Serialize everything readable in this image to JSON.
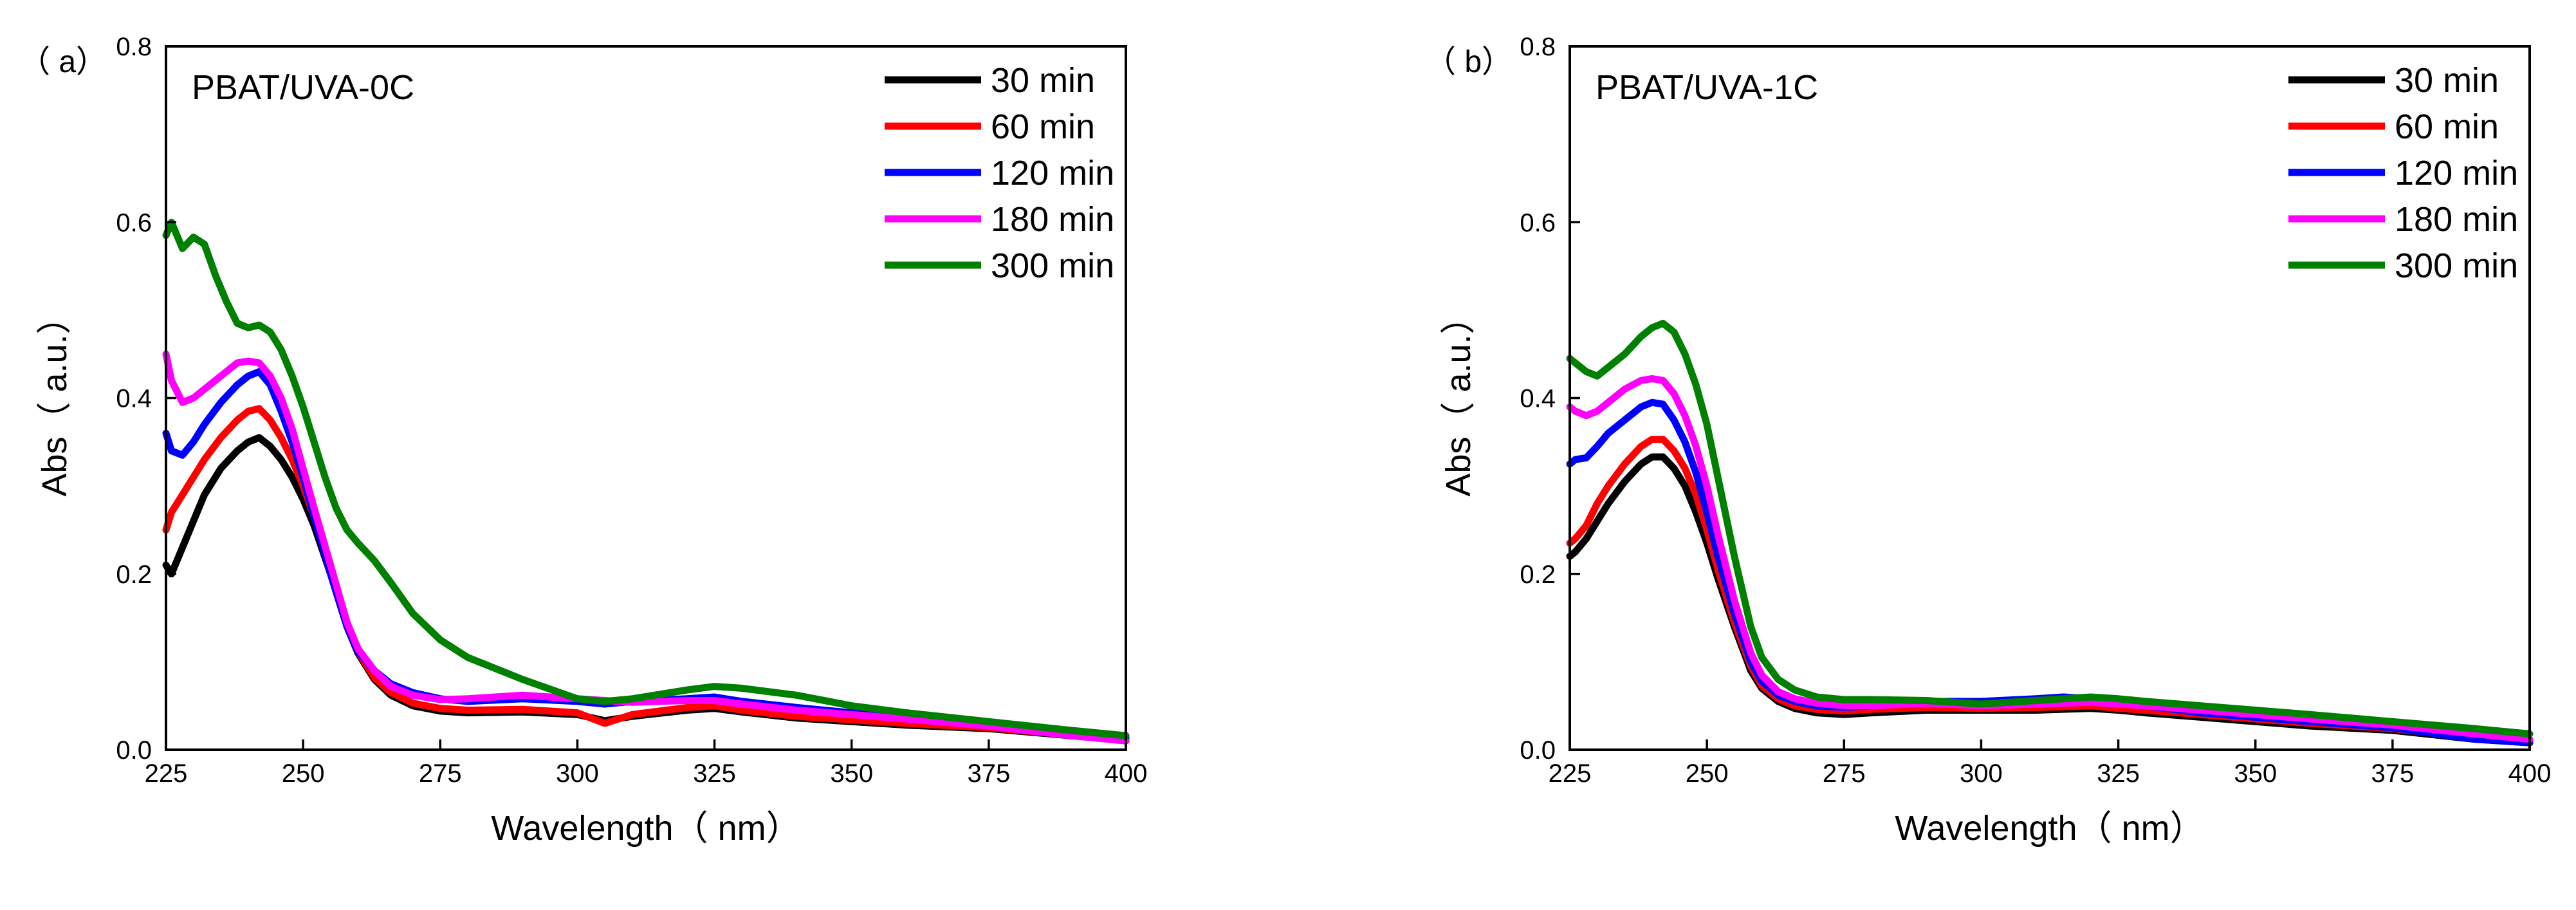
{
  "chart_data": [
    {
      "type": "line",
      "panel_label": "（ a）",
      "title": "PBAT/UVA-0C",
      "xlabel": "Wavelength（ nm）",
      "ylabel": "Abs（ a.u.）",
      "xlim": [
        225,
        400
      ],
      "ylim": [
        0.0,
        0.8
      ],
      "xticks": [
        "225",
        "250",
        "275",
        "300",
        "325",
        "350",
        "375",
        "400"
      ],
      "yticks": [
        "0.0",
        "0.2",
        "0.4",
        "0.6",
        "0.8"
      ],
      "grid": false,
      "legend_position": "top-right",
      "series": [
        {
          "name": "30 min",
          "color": "#000000",
          "x": [
            225,
            226,
            228,
            230,
            232,
            235,
            238,
            240,
            242,
            244,
            246,
            248,
            250,
            252,
            255,
            258,
            260,
            263,
            266,
            270,
            275,
            280,
            290,
            300,
            305,
            310,
            320,
            325,
            330,
            340,
            350,
            360,
            375,
            390,
            400
          ],
          "y": [
            0.21,
            0.2,
            0.23,
            0.26,
            0.29,
            0.32,
            0.34,
            0.35,
            0.355,
            0.345,
            0.33,
            0.31,
            0.285,
            0.255,
            0.2,
            0.14,
            0.11,
            0.08,
            0.062,
            0.05,
            0.044,
            0.042,
            0.043,
            0.04,
            0.033,
            0.038,
            0.045,
            0.047,
            0.043,
            0.036,
            0.032,
            0.028,
            0.024,
            0.016,
            0.012
          ]
        },
        {
          "name": "60 min",
          "color": "#ff0000",
          "x": [
            225,
            226,
            228,
            230,
            232,
            235,
            238,
            240,
            242,
            244,
            246,
            248,
            250,
            252,
            255,
            258,
            260,
            263,
            266,
            270,
            275,
            280,
            290,
            300,
            305,
            310,
            320,
            325,
            330,
            340,
            350,
            360,
            375,
            390,
            400
          ],
          "y": [
            0.25,
            0.27,
            0.29,
            0.31,
            0.33,
            0.355,
            0.375,
            0.385,
            0.388,
            0.375,
            0.355,
            0.33,
            0.3,
            0.265,
            0.205,
            0.145,
            0.112,
            0.082,
            0.065,
            0.053,
            0.047,
            0.045,
            0.046,
            0.042,
            0.03,
            0.04,
            0.048,
            0.05,
            0.045,
            0.038,
            0.034,
            0.03,
            0.025,
            0.017,
            0.013
          ]
        },
        {
          "name": "120 min",
          "color": "#0000ff",
          "x": [
            225,
            226,
            228,
            230,
            232,
            235,
            238,
            240,
            242,
            244,
            246,
            248,
            250,
            252,
            255,
            258,
            260,
            263,
            266,
            270,
            275,
            280,
            290,
            300,
            305,
            310,
            320,
            325,
            330,
            340,
            350,
            360,
            375,
            390,
            400
          ],
          "y": [
            0.36,
            0.34,
            0.335,
            0.35,
            0.37,
            0.395,
            0.415,
            0.425,
            0.43,
            0.415,
            0.385,
            0.35,
            0.31,
            0.265,
            0.2,
            0.14,
            0.112,
            0.09,
            0.075,
            0.065,
            0.058,
            0.055,
            0.058,
            0.055,
            0.052,
            0.055,
            0.058,
            0.06,
            0.055,
            0.048,
            0.042,
            0.036,
            0.028,
            0.018,
            0.014
          ]
        },
        {
          "name": "180 min",
          "color": "#ff00ff",
          "x": [
            225,
            226,
            228,
            230,
            232,
            235,
            238,
            240,
            242,
            244,
            246,
            248,
            250,
            252,
            255,
            258,
            260,
            263,
            266,
            270,
            275,
            280,
            290,
            300,
            305,
            310,
            320,
            325,
            330,
            340,
            350,
            360,
            375,
            390,
            400
          ],
          "y": [
            0.45,
            0.42,
            0.395,
            0.4,
            0.41,
            0.425,
            0.44,
            0.442,
            0.44,
            0.425,
            0.4,
            0.365,
            0.32,
            0.275,
            0.21,
            0.145,
            0.115,
            0.09,
            0.072,
            0.062,
            0.057,
            0.058,
            0.062,
            0.058,
            0.056,
            0.054,
            0.056,
            0.056,
            0.052,
            0.045,
            0.04,
            0.035,
            0.027,
            0.016,
            0.01
          ]
        },
        {
          "name": "300 min",
          "color": "#008000",
          "x": [
            225,
            226,
            228,
            230,
            232,
            234,
            236,
            238,
            240,
            242,
            244,
            246,
            248,
            250,
            252,
            254,
            256,
            258,
            260,
            263,
            266,
            270,
            275,
            280,
            290,
            300,
            305,
            310,
            320,
            325,
            330,
            340,
            350,
            360,
            375,
            390,
            400
          ],
          "y": [
            0.585,
            0.6,
            0.57,
            0.583,
            0.575,
            0.54,
            0.51,
            0.485,
            0.48,
            0.483,
            0.475,
            0.455,
            0.425,
            0.39,
            0.35,
            0.31,
            0.275,
            0.25,
            0.235,
            0.215,
            0.19,
            0.155,
            0.125,
            0.105,
            0.08,
            0.058,
            0.055,
            0.058,
            0.068,
            0.072,
            0.07,
            0.062,
            0.05,
            0.042,
            0.032,
            0.022,
            0.016
          ]
        }
      ]
    },
    {
      "type": "line",
      "panel_label": "（ b）",
      "title": "PBAT/UVA-1C",
      "xlabel": "Wavelength（ nm）",
      "ylabel": "Abs（ a.u.）",
      "xlim": [
        225,
        400
      ],
      "ylim": [
        0.0,
        0.8
      ],
      "xticks": [
        "225",
        "250",
        "275",
        "300",
        "325",
        "350",
        "375",
        "400"
      ],
      "yticks": [
        "0.0",
        "0.2",
        "0.4",
        "0.6",
        "0.8"
      ],
      "grid": false,
      "legend_position": "top-right",
      "series": [
        {
          "name": "30 min",
          "color": "#000000",
          "x": [
            225,
            226,
            228,
            230,
            232,
            235,
            238,
            240,
            242,
            244,
            246,
            248,
            250,
            252,
            255,
            258,
            260,
            263,
            266,
            270,
            275,
            280,
            290,
            300,
            310,
            320,
            325,
            330,
            340,
            350,
            360,
            375,
            390,
            400
          ],
          "y": [
            0.22,
            0.225,
            0.24,
            0.26,
            0.28,
            0.305,
            0.325,
            0.333,
            0.333,
            0.32,
            0.3,
            0.27,
            0.235,
            0.195,
            0.14,
            0.09,
            0.07,
            0.055,
            0.047,
            0.042,
            0.04,
            0.042,
            0.045,
            0.045,
            0.045,
            0.047,
            0.045,
            0.042,
            0.037,
            0.032,
            0.027,
            0.022,
            0.012,
            0.008
          ]
        },
        {
          "name": "60 min",
          "color": "#ff0000",
          "x": [
            225,
            226,
            228,
            230,
            232,
            235,
            238,
            240,
            242,
            244,
            246,
            248,
            250,
            252,
            255,
            258,
            260,
            263,
            266,
            270,
            275,
            280,
            290,
            300,
            310,
            320,
            325,
            330,
            340,
            350,
            360,
            375,
            390,
            400
          ],
          "y": [
            0.235,
            0.24,
            0.255,
            0.28,
            0.3,
            0.325,
            0.345,
            0.353,
            0.353,
            0.34,
            0.32,
            0.29,
            0.25,
            0.205,
            0.145,
            0.095,
            0.073,
            0.058,
            0.05,
            0.046,
            0.044,
            0.046,
            0.048,
            0.047,
            0.048,
            0.05,
            0.047,
            0.045,
            0.04,
            0.035,
            0.03,
            0.024,
            0.014,
            0.01
          ]
        },
        {
          "name": "120 min",
          "color": "#0000ff",
          "x": [
            225,
            226,
            228,
            230,
            232,
            235,
            238,
            240,
            242,
            244,
            246,
            248,
            250,
            252,
            255,
            258,
            260,
            263,
            266,
            270,
            275,
            280,
            290,
            300,
            310,
            315,
            320,
            325,
            330,
            340,
            350,
            360,
            375,
            390,
            400
          ],
          "y": [
            0.325,
            0.33,
            0.332,
            0.345,
            0.36,
            0.375,
            0.39,
            0.395,
            0.393,
            0.375,
            0.35,
            0.315,
            0.27,
            0.22,
            0.155,
            0.1,
            0.078,
            0.062,
            0.055,
            0.05,
            0.048,
            0.05,
            0.055,
            0.055,
            0.058,
            0.06,
            0.058,
            0.055,
            0.05,
            0.042,
            0.037,
            0.032,
            0.025,
            0.012,
            0.008
          ]
        },
        {
          "name": "180 min",
          "color": "#ff00ff",
          "x": [
            225,
            226,
            228,
            230,
            232,
            235,
            238,
            240,
            242,
            244,
            246,
            248,
            250,
            252,
            255,
            258,
            260,
            263,
            266,
            270,
            275,
            280,
            290,
            300,
            310,
            320,
            325,
            330,
            340,
            350,
            360,
            375,
            390,
            400
          ],
          "y": [
            0.39,
            0.385,
            0.38,
            0.385,
            0.395,
            0.41,
            0.42,
            0.422,
            0.42,
            0.405,
            0.38,
            0.345,
            0.3,
            0.245,
            0.17,
            0.11,
            0.085,
            0.066,
            0.058,
            0.053,
            0.05,
            0.05,
            0.053,
            0.05,
            0.052,
            0.054,
            0.052,
            0.05,
            0.045,
            0.04,
            0.035,
            0.028,
            0.018,
            0.012
          ]
        },
        {
          "name": "300 min",
          "color": "#008000",
          "x": [
            225,
            226,
            228,
            230,
            232,
            235,
            238,
            240,
            242,
            244,
            246,
            248,
            250,
            252,
            255,
            258,
            260,
            263,
            266,
            270,
            275,
            280,
            290,
            300,
            310,
            320,
            325,
            330,
            340,
            350,
            360,
            375,
            390,
            400
          ],
          "y": [
            0.445,
            0.44,
            0.43,
            0.425,
            0.435,
            0.45,
            0.47,
            0.48,
            0.485,
            0.475,
            0.45,
            0.415,
            0.37,
            0.31,
            0.22,
            0.14,
            0.105,
            0.08,
            0.068,
            0.06,
            0.057,
            0.057,
            0.056,
            0.052,
            0.056,
            0.06,
            0.058,
            0.055,
            0.05,
            0.045,
            0.04,
            0.032,
            0.024,
            0.018
          ]
        }
      ]
    }
  ]
}
